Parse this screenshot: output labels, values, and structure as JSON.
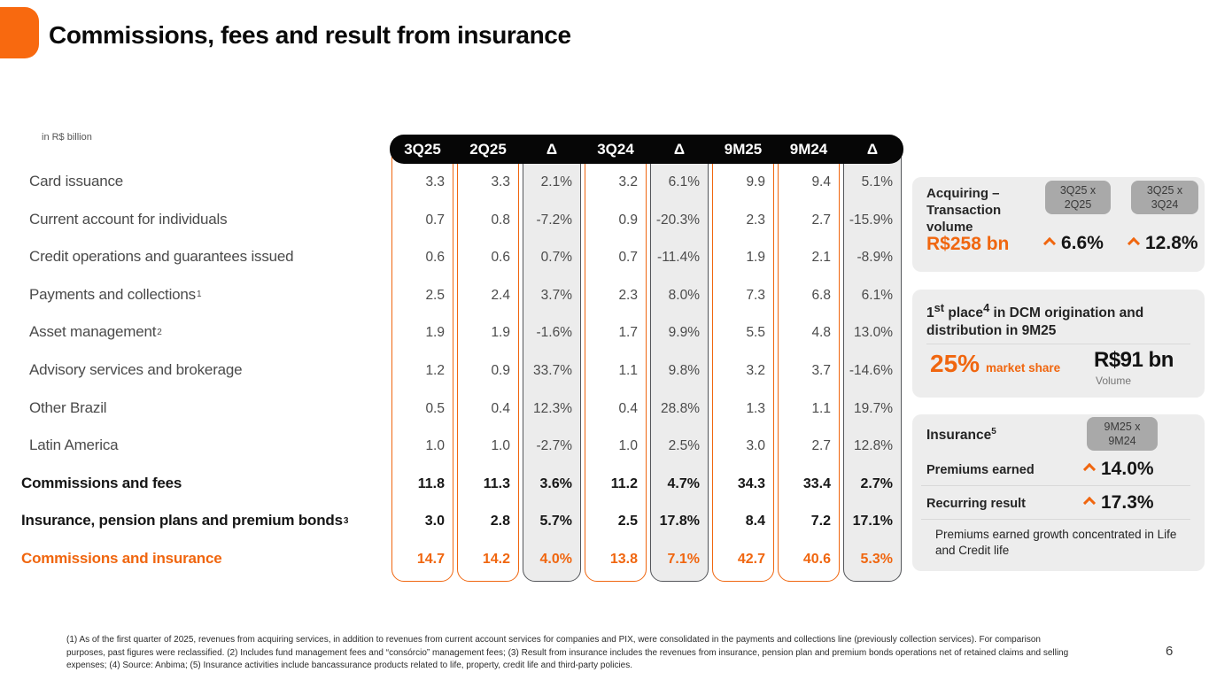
{
  "slide": {
    "title": "Commissions, fees and result from insurance",
    "unit_label": "in R$ billion",
    "page_number": "6",
    "footnote": "(1) As of the first quarter of 2025, revenues from acquiring services, in addition to revenues from current account services for companies and PIX, were consolidated in the payments and collections line (previously collection services). For comparison purposes, past figures were reclassified. (2) Includes fund management fees and “consórcio” management fees; (3) Result from insurance includes the revenues from insurance, pension plan and premium bonds operations net of retained claims and selling expenses; (4) Source: Anbima; (5) Insurance activities include bancassurance products related to life, property, credit life and third-party policies."
  },
  "colors": {
    "accent": "#F0660F",
    "logo": "#F8690F",
    "delta_column_bg": "#ECECEC",
    "delta_column_border": "#54565A",
    "panel_bg": "#EDEDED",
    "badge_bg": "#A9A9A9",
    "header_bar_bg": "#060606"
  },
  "table": {
    "columns": [
      "3Q25",
      "2Q25",
      "Δ",
      "3Q24",
      "Δ",
      "9M25",
      "9M24",
      "Δ"
    ],
    "rows": [
      {
        "label": "Card issuance",
        "sup": "",
        "style": "regular",
        "values": [
          "3.3",
          "3.3",
          "2.1%",
          "3.2",
          "6.1%",
          "9.9",
          "9.4",
          "5.1%"
        ]
      },
      {
        "label": "Current account for individuals",
        "sup": "",
        "style": "regular",
        "values": [
          "0.7",
          "0.8",
          "-7.2%",
          "0.9",
          "-20.3%",
          "2.3",
          "2.7",
          "-15.9%"
        ]
      },
      {
        "label": "Credit operations and guarantees issued",
        "sup": "",
        "style": "regular",
        "values": [
          "0.6",
          "0.6",
          "0.7%",
          "0.7",
          "-11.4%",
          "1.9",
          "2.1",
          "-8.9%"
        ]
      },
      {
        "label": "Payments and collections",
        "sup": "1",
        "style": "regular",
        "values": [
          "2.5",
          "2.4",
          "3.7%",
          "2.3",
          "8.0%",
          "7.3",
          "6.8",
          "6.1%"
        ]
      },
      {
        "label": "Asset management",
        "sup": "2",
        "style": "regular",
        "values": [
          "1.9",
          "1.9",
          "-1.6%",
          "1.7",
          "9.9%",
          "5.5",
          "4.8",
          "13.0%"
        ]
      },
      {
        "label": "Advisory services and brokerage",
        "sup": "",
        "style": "regular",
        "values": [
          "1.2",
          "0.9",
          "33.7%",
          "1.1",
          "9.8%",
          "3.2",
          "3.7",
          "-14.6%"
        ]
      },
      {
        "label": "Other Brazil",
        "sup": "",
        "style": "regular",
        "values": [
          "0.5",
          "0.4",
          "12.3%",
          "0.4",
          "28.8%",
          "1.3",
          "1.1",
          "19.7%"
        ]
      },
      {
        "label": "Latin America",
        "sup": "",
        "style": "regular",
        "values": [
          "1.0",
          "1.0",
          "-2.7%",
          "1.0",
          "2.5%",
          "3.0",
          "2.7",
          "12.8%"
        ]
      },
      {
        "label": "Commissions and fees",
        "sup": "",
        "style": "bold",
        "values": [
          "11.8",
          "11.3",
          "3.6%",
          "11.2",
          "4.7%",
          "34.3",
          "33.4",
          "2.7%"
        ]
      },
      {
        "label": "Insurance, pension plans and premium bonds",
        "sup": "3",
        "style": "bold",
        "values": [
          "3.0",
          "2.8",
          "5.7%",
          "2.5",
          "17.8%",
          "8.4",
          "7.2",
          "17.1%"
        ]
      },
      {
        "label": "Commissions and insurance",
        "sup": "",
        "style": "orange",
        "values": [
          "14.7",
          "14.2",
          "4.0%",
          "13.8",
          "7.1%",
          "42.7",
          "40.6",
          "5.3%"
        ]
      }
    ]
  },
  "panels": {
    "acquiring": {
      "title": "Acquiring – Transaction volume",
      "badges": [
        "3Q25 x\n2Q25",
        "3Q25 x\n3Q24"
      ],
      "volume": "R$258 bn",
      "deltas": [
        "6.6%",
        "12.8%"
      ]
    },
    "dcm": {
      "heading_pre": "1",
      "heading_sup1": "st",
      "heading_mid": " place",
      "heading_sup2": "4",
      "heading_rest": " in DCM origination and distribution in 9M25",
      "market_share_value": "25%",
      "market_share_label": "market share",
      "volume_value": "R$91 bn",
      "volume_label": "Volume"
    },
    "insurance": {
      "title": "Insurance",
      "title_sup": "5",
      "badge": "9M25 x\n9M24",
      "rows": [
        {
          "label": "Premiums earned",
          "value": "14.0%"
        },
        {
          "label": "Recurring result",
          "value": "17.3%"
        }
      ],
      "note": "Premiums earned growth concentrated in Life and Credit life"
    }
  }
}
